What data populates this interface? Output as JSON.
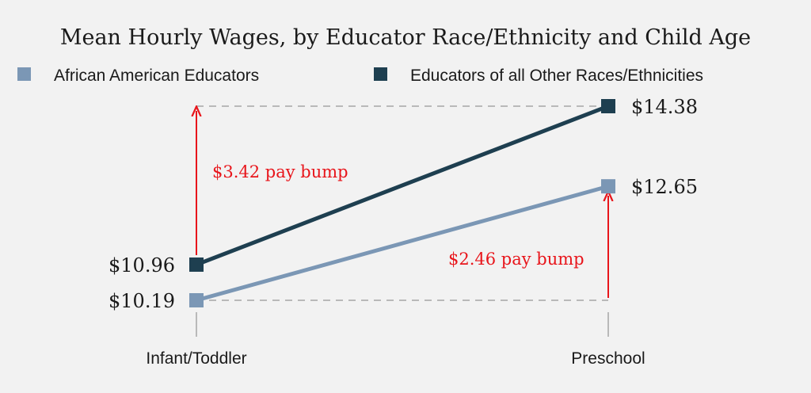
{
  "chart_data": {
    "type": "line",
    "title": "Mean Hourly Wages, by Educator Race/Ethnicity and Child Age",
    "categories": [
      "Infant/Toddler",
      "Preschool"
    ],
    "series": [
      {
        "name": "African American Educators",
        "color": "#7b97b5",
        "values": [
          10.19,
          12.65
        ],
        "labels": [
          "$10.19",
          "$12.65"
        ]
      },
      {
        "name": "Educators of all Other Races/Ethnicities",
        "color": "#1e3f50",
        "values": [
          10.96,
          14.38
        ],
        "labels": [
          "$10.96",
          "$14.38"
        ]
      }
    ],
    "annotations": [
      {
        "text": "$3.42 pay bump",
        "color": "#e8151b",
        "category": "Infant/Toddler",
        "from": 10.96,
        "to": 14.38
      },
      {
        "text": "$2.46 pay bump",
        "color": "#e8151b",
        "category": "Preschool",
        "from": 10.19,
        "to": 12.65
      }
    ],
    "ylim": [
      9.7,
      15.0
    ],
    "grid": false,
    "legend": "top-left"
  }
}
